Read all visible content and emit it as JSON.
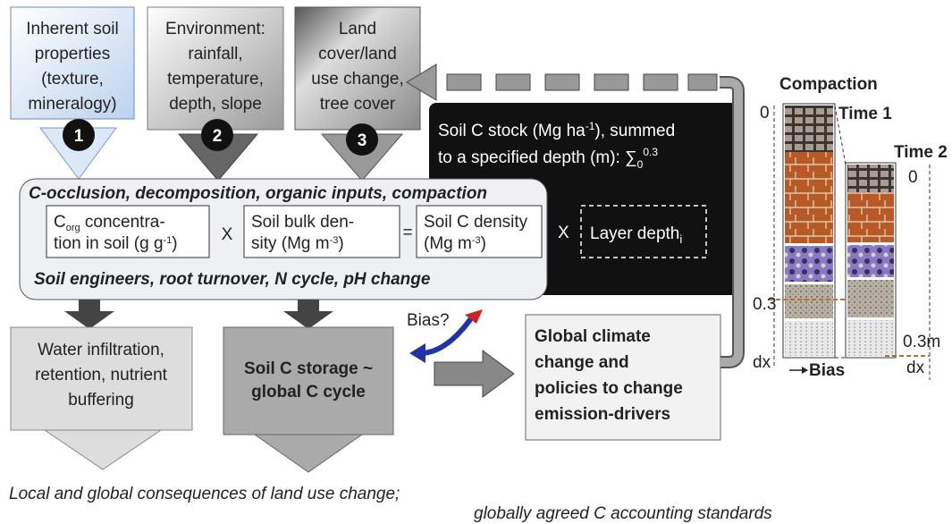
{
  "factors": [
    {
      "number": "1",
      "lines": [
        "Inherent soil",
        "properties",
        "(texture,",
        "mineralogy)"
      ]
    },
    {
      "number": "2",
      "lines": [
        "Environment:",
        "rainfall,",
        "temperature,",
        "depth, slope"
      ]
    },
    {
      "number": "3",
      "lines": [
        "Land",
        "cover/land",
        "use change,",
        "tree cover"
      ]
    }
  ],
  "processes": {
    "title": "C-occlusion, decomposition, organic inputs, compaction",
    "footer": "Soil engineers, root turnover, N cycle, pH change",
    "term1": {
      "a": "C",
      "a_sub": "org",
      "b": " concentra-",
      "c": "tion in soil (g g",
      "c_sup": "-1",
      "d": ")"
    },
    "op1": "X",
    "term2": {
      "a": "Soil bulk den-",
      "b": "sity (Mg m",
      "b_sup": "-3",
      "c": ")"
    },
    "op2": "=",
    "term3": {
      "a": "Soil C density",
      "b": "(Mg m",
      "b_sup": "-3",
      "c": ")"
    }
  },
  "stock": {
    "a": "Soil C stock (Mg ha",
    "a_sup": "-1",
    "b": "), summed",
    "c": "to a specified depth (m): ∑",
    "sum_lower": "0",
    "sum_upper": "0.3",
    "op": "X",
    "layer": "Layer depth",
    "layer_sub": "i"
  },
  "bias_question": "Bias?",
  "water": {
    "lines": [
      "Water infiltration,",
      "retention, nutrient",
      "buffering"
    ]
  },
  "storage": {
    "lines": [
      "Soil C storage ~",
      "global C cycle"
    ]
  },
  "policy": {
    "lines": [
      "Global climate",
      "change and",
      "policies to change",
      "emission-drivers"
    ]
  },
  "compaction": {
    "title": "Compaction",
    "time1": "Time 1",
    "time2": "Time 2",
    "t1_top": "0",
    "t1_depth": "0.3",
    "t1_dx": "dx",
    "t2_top": "0",
    "t2_depth": "0.3m",
    "t2_dx": "dx",
    "bias": "Bias"
  },
  "consequences": [
    "Local and global consequences of land use change;",
    "globally agreed C accounting standards"
  ]
}
